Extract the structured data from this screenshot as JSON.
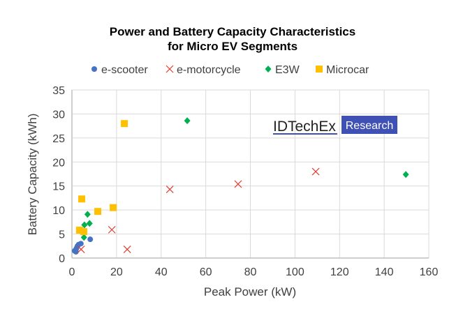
{
  "chart_data": {
    "type": "scatter",
    "title": [
      "Power and Battery Capacity Characteristics",
      "for Micro EV Segments"
    ],
    "xlabel": "Peak Power (kW)",
    "ylabel": "Battery Capacity (kWh)",
    "xlim": [
      0,
      160
    ],
    "ylim": [
      0,
      35
    ],
    "xticks": [
      0,
      20,
      40,
      60,
      80,
      100,
      120,
      140,
      160
    ],
    "yticks": [
      0,
      5,
      10,
      15,
      20,
      25,
      30,
      35
    ],
    "grid": true,
    "legend_placement": "top",
    "watermark": {
      "brand": "IDTechEx",
      "tag": "Research",
      "tag_color": "#3f51b5"
    },
    "series": [
      {
        "name": "e-scooter",
        "marker": "circle",
        "color": "#4472c4",
        "points": [
          [
            1.2,
            1.5
          ],
          [
            1.8,
            1.3
          ],
          [
            2,
            2
          ],
          [
            2.5,
            2.5
          ],
          [
            3,
            2.8
          ],
          [
            4,
            3
          ],
          [
            8.2,
            3.9
          ]
        ]
      },
      {
        "name": "e-motorcycle",
        "marker": "x",
        "color": "#e03c31",
        "points": [
          [
            4.1,
            1.8
          ],
          [
            17.9,
            5.9
          ],
          [
            24.8,
            1.8
          ],
          [
            43.9,
            14.3
          ],
          [
            74.5,
            15.4
          ],
          [
            109.3,
            18.0
          ]
        ]
      },
      {
        "name": "E3W",
        "marker": "diamond",
        "color": "#00b050",
        "points": [
          [
            5.4,
            4.3
          ],
          [
            5.6,
            6.9
          ],
          [
            7.0,
            9.1
          ],
          [
            7.9,
            7.2
          ],
          [
            51.7,
            28.6
          ],
          [
            149.7,
            17.4
          ]
        ]
      },
      {
        "name": "Microcar",
        "marker": "square",
        "color": "#ffc000",
        "points": [
          [
            3.4,
            5.8
          ],
          [
            5.3,
            5.5
          ],
          [
            4.4,
            12.3
          ],
          [
            11.6,
            9.7
          ],
          [
            18.5,
            10.5
          ],
          [
            23.5,
            28.0
          ]
        ]
      }
    ]
  }
}
